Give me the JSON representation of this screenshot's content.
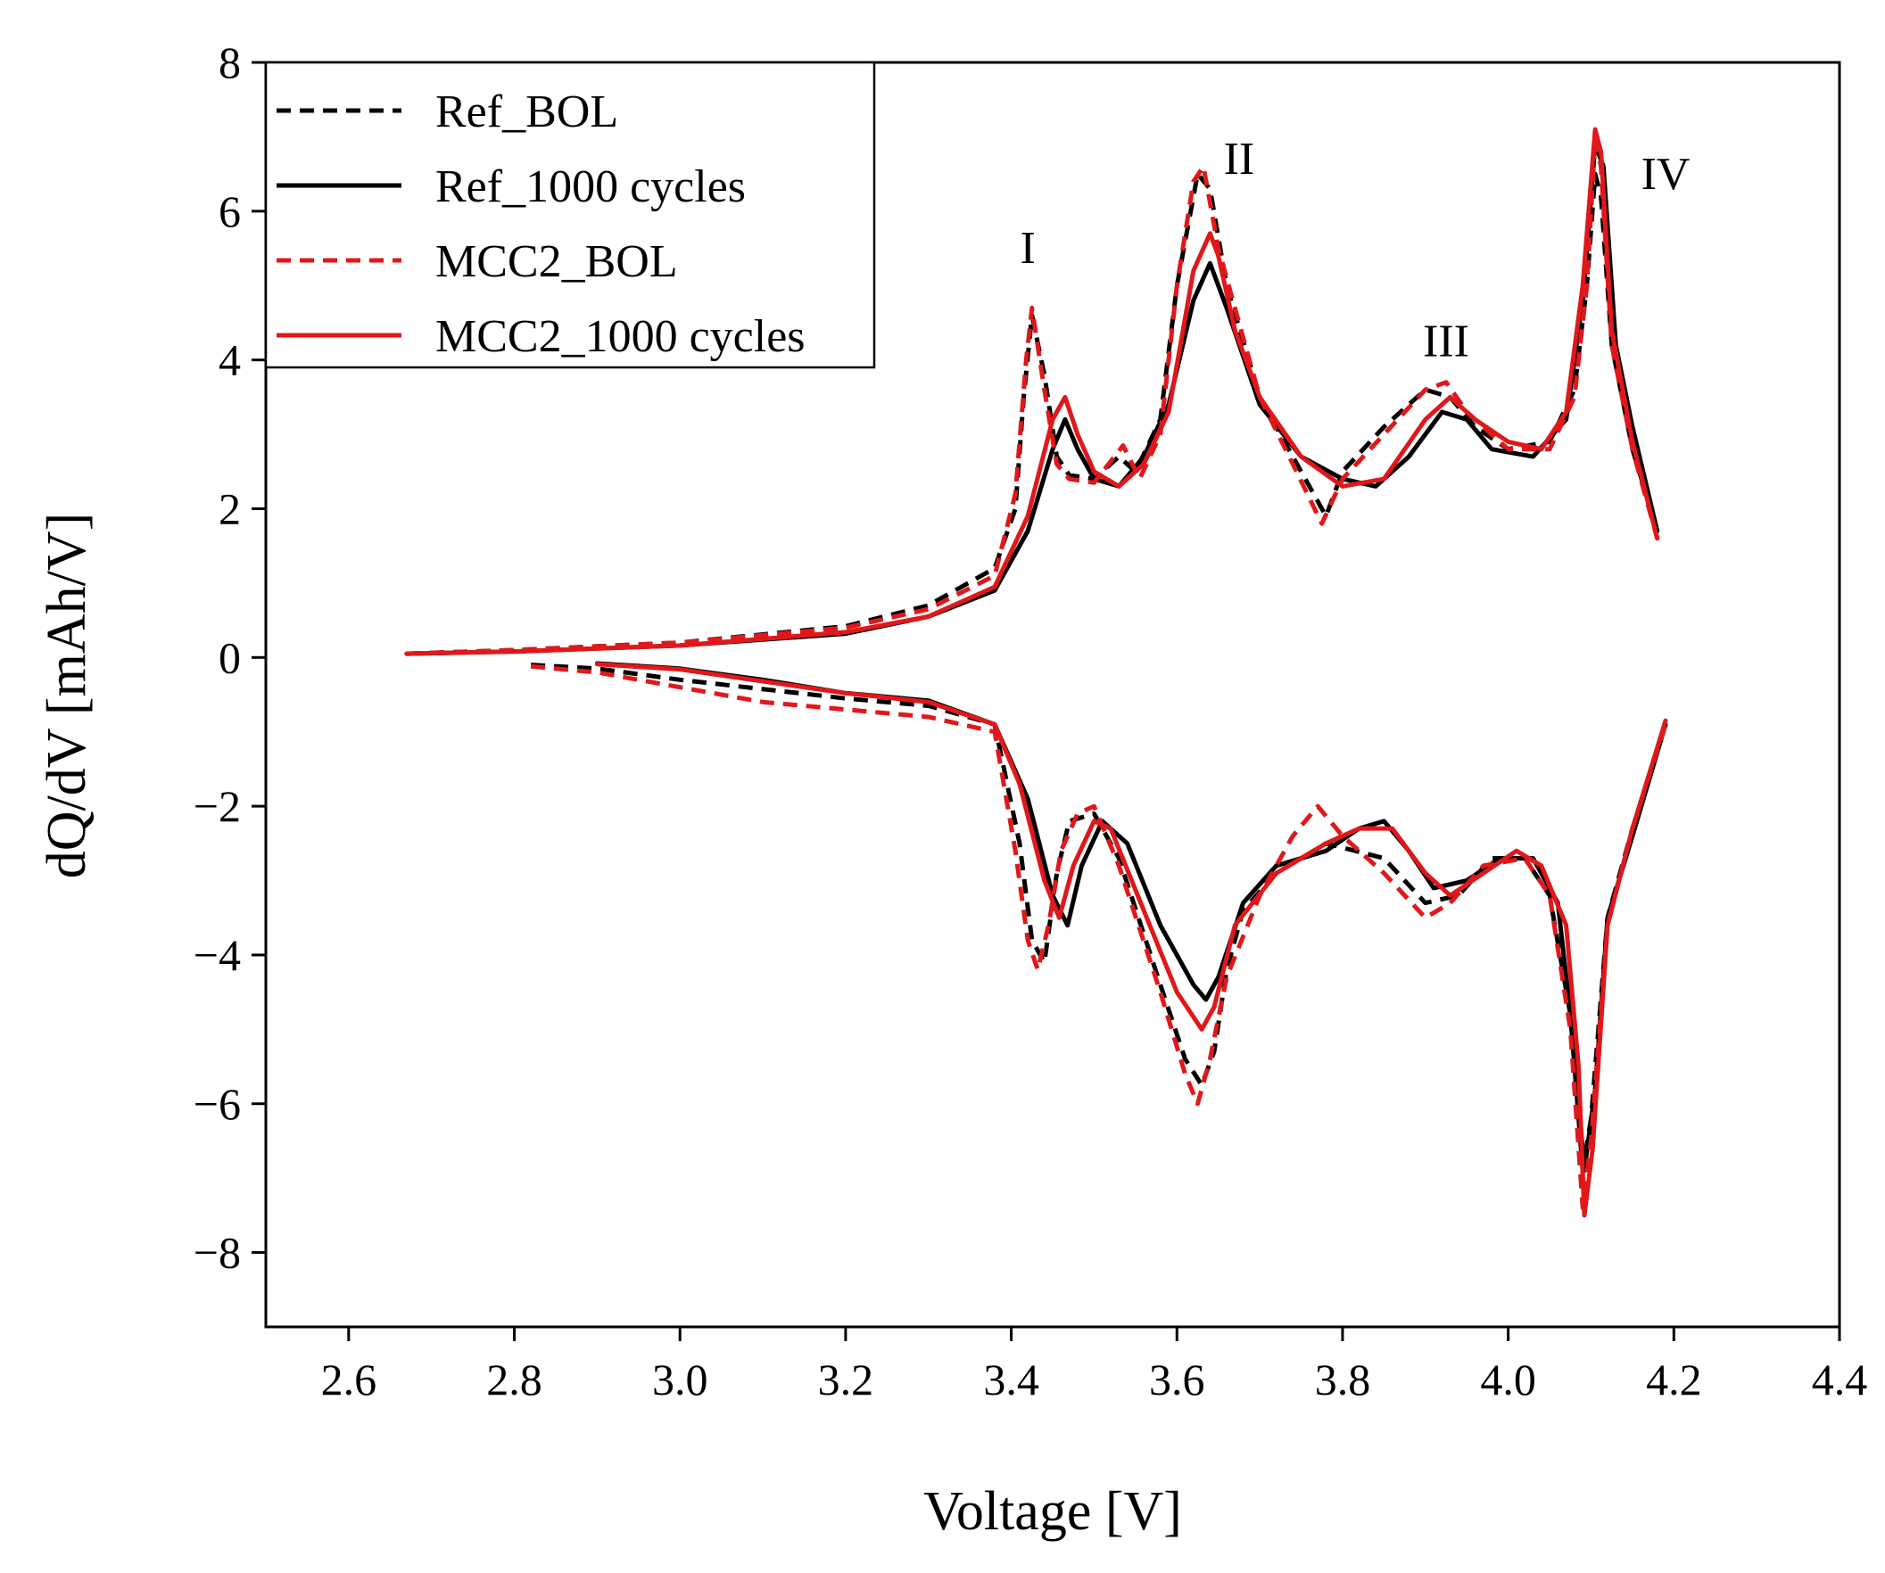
{
  "chart_data": {
    "type": "line",
    "title": "",
    "xlabel": "Voltage [V]",
    "ylabel": "dQ/dV [mAh/V]",
    "xlim": [
      2.5,
      4.4
    ],
    "ylim": [
      -9,
      8
    ],
    "xticks": [
      2.6,
      2.8,
      3.0,
      3.2,
      3.4,
      3.6,
      3.8,
      4.0,
      4.2,
      4.4
    ],
    "xtick_labels": [
      "2.6",
      "2.8",
      "3.0",
      "3.2",
      "3.4",
      "3.6",
      "3.8",
      "4.0",
      "4.2",
      "4.4"
    ],
    "yticks": [
      -8,
      -6,
      -4,
      -2,
      0,
      2,
      4,
      6,
      8
    ],
    "ytick_labels": [
      "−8",
      "−6",
      "−4",
      "−2",
      "0",
      "2",
      "4",
      "6",
      "8"
    ],
    "grid": false,
    "legend_position": "top-left",
    "annotations": [
      {
        "text": "I",
        "x": 3.42,
        "y": 5.3
      },
      {
        "text": "II",
        "x": 3.675,
        "y": 6.5
      },
      {
        "text": "III",
        "x": 3.925,
        "y": 4.05
      },
      {
        "text": "IV",
        "x": 4.19,
        "y": 6.3
      }
    ],
    "series": [
      {
        "name": "Ref_BOL",
        "color": "#000000",
        "dash": "dashed",
        "charge": [
          [
            2.67,
            0.05
          ],
          [
            2.8,
            0.1
          ],
          [
            3.0,
            0.2
          ],
          [
            3.2,
            0.42
          ],
          [
            3.3,
            0.7
          ],
          [
            3.38,
            1.2
          ],
          [
            3.405,
            2.0
          ],
          [
            3.415,
            3.5
          ],
          [
            3.425,
            4.6
          ],
          [
            3.44,
            3.8
          ],
          [
            3.455,
            2.7
          ],
          [
            3.47,
            2.45
          ],
          [
            3.5,
            2.4
          ],
          [
            3.53,
            2.7
          ],
          [
            3.55,
            2.5
          ],
          [
            3.58,
            3.2
          ],
          [
            3.6,
            5.0
          ],
          [
            3.625,
            6.5
          ],
          [
            3.64,
            6.3
          ],
          [
            3.66,
            5.0
          ],
          [
            3.7,
            3.5
          ],
          [
            3.75,
            2.5
          ],
          [
            3.78,
            1.9
          ],
          [
            3.8,
            2.5
          ],
          [
            3.85,
            3.1
          ],
          [
            3.9,
            3.6
          ],
          [
            3.93,
            3.5
          ],
          [
            3.96,
            3.1
          ],
          [
            4.0,
            2.8
          ],
          [
            4.05,
            2.9
          ],
          [
            4.08,
            3.6
          ],
          [
            4.095,
            5.0
          ],
          [
            4.105,
            6.5
          ],
          [
            4.112,
            6.2
          ],
          [
            4.125,
            4.2
          ],
          [
            4.15,
            2.8
          ],
          [
            4.18,
            1.7
          ]
        ],
        "discharge": [
          [
            2.82,
            -0.1
          ],
          [
            2.9,
            -0.15
          ],
          [
            3.0,
            -0.3
          ],
          [
            3.2,
            -0.55
          ],
          [
            3.3,
            -0.65
          ],
          [
            3.38,
            -0.9
          ],
          [
            3.41,
            -2.5
          ],
          [
            3.425,
            -3.8
          ],
          [
            3.44,
            -4.1
          ],
          [
            3.455,
            -2.9
          ],
          [
            3.47,
            -2.2
          ],
          [
            3.5,
            -2.1
          ],
          [
            3.53,
            -2.7
          ],
          [
            3.58,
            -4.4
          ],
          [
            3.61,
            -5.4
          ],
          [
            3.63,
            -5.75
          ],
          [
            3.645,
            -5.3
          ],
          [
            3.66,
            -4.2
          ],
          [
            3.68,
            -3.4
          ],
          [
            3.72,
            -2.9
          ],
          [
            3.78,
            -2.5
          ],
          [
            3.85,
            -2.7
          ],
          [
            3.9,
            -3.3
          ],
          [
            3.94,
            -3.2
          ],
          [
            3.98,
            -2.7
          ],
          [
            4.02,
            -2.7
          ],
          [
            4.05,
            -3.2
          ],
          [
            4.075,
            -4.8
          ],
          [
            4.09,
            -6.9
          ],
          [
            4.1,
            -6.2
          ],
          [
            4.12,
            -3.5
          ],
          [
            4.15,
            -2.3
          ],
          [
            4.19,
            -0.9
          ]
        ]
      },
      {
        "name": "Ref_1000 cycles",
        "color": "#000000",
        "dash": "solid",
        "charge": [
          [
            2.67,
            0.05
          ],
          [
            2.8,
            0.08
          ],
          [
            3.0,
            0.16
          ],
          [
            3.2,
            0.32
          ],
          [
            3.3,
            0.55
          ],
          [
            3.38,
            0.9
          ],
          [
            3.42,
            1.7
          ],
          [
            3.45,
            2.8
          ],
          [
            3.465,
            3.2
          ],
          [
            3.48,
            2.8
          ],
          [
            3.5,
            2.4
          ],
          [
            3.53,
            2.3
          ],
          [
            3.56,
            2.7
          ],
          [
            3.59,
            3.4
          ],
          [
            3.62,
            4.8
          ],
          [
            3.64,
            5.3
          ],
          [
            3.66,
            4.7
          ],
          [
            3.7,
            3.4
          ],
          [
            3.75,
            2.7
          ],
          [
            3.8,
            2.4
          ],
          [
            3.84,
            2.3
          ],
          [
            3.88,
            2.7
          ],
          [
            3.92,
            3.3
          ],
          [
            3.95,
            3.2
          ],
          [
            3.98,
            2.8
          ],
          [
            4.03,
            2.7
          ],
          [
            4.07,
            3.2
          ],
          [
            4.09,
            4.8
          ],
          [
            4.105,
            6.9
          ],
          [
            4.115,
            6.6
          ],
          [
            4.13,
            4.2
          ],
          [
            4.15,
            3.1
          ],
          [
            4.18,
            1.7
          ]
        ],
        "discharge": [
          [
            2.9,
            -0.08
          ],
          [
            3.0,
            -0.15
          ],
          [
            3.1,
            -0.3
          ],
          [
            3.2,
            -0.48
          ],
          [
            3.3,
            -0.58
          ],
          [
            3.38,
            -0.9
          ],
          [
            3.42,
            -1.9
          ],
          [
            3.45,
            -3.2
          ],
          [
            3.468,
            -3.6
          ],
          [
            3.485,
            -2.8
          ],
          [
            3.51,
            -2.2
          ],
          [
            3.54,
            -2.5
          ],
          [
            3.58,
            -3.6
          ],
          [
            3.62,
            -4.4
          ],
          [
            3.635,
            -4.6
          ],
          [
            3.65,
            -4.3
          ],
          [
            3.68,
            -3.3
          ],
          [
            3.72,
            -2.8
          ],
          [
            3.78,
            -2.6
          ],
          [
            3.82,
            -2.3
          ],
          [
            3.85,
            -2.2
          ],
          [
            3.88,
            -2.6
          ],
          [
            3.91,
            -3.1
          ],
          [
            3.95,
            -3.0
          ],
          [
            3.99,
            -2.7
          ],
          [
            4.03,
            -2.7
          ],
          [
            4.06,
            -3.3
          ],
          [
            4.08,
            -5.3
          ],
          [
            4.092,
            -6.9
          ],
          [
            4.105,
            -5.8
          ],
          [
            4.12,
            -3.5
          ],
          [
            4.15,
            -2.4
          ],
          [
            4.19,
            -0.9
          ]
        ]
      },
      {
        "name": "MCC2_BOL",
        "color": "#e0181b",
        "dash": "dashed",
        "charge": [
          [
            2.67,
            0.05
          ],
          [
            2.8,
            0.1
          ],
          [
            3.0,
            0.2
          ],
          [
            3.2,
            0.4
          ],
          [
            3.3,
            0.65
          ],
          [
            3.38,
            1.1
          ],
          [
            3.405,
            2.2
          ],
          [
            3.418,
            4.0
          ],
          [
            3.425,
            4.7
          ],
          [
            3.44,
            3.6
          ],
          [
            3.455,
            2.6
          ],
          [
            3.47,
            2.4
          ],
          [
            3.5,
            2.35
          ],
          [
            3.535,
            2.85
          ],
          [
            3.555,
            2.4
          ],
          [
            3.58,
            3.0
          ],
          [
            3.6,
            5.0
          ],
          [
            3.62,
            6.4
          ],
          [
            3.632,
            6.6
          ],
          [
            3.65,
            5.5
          ],
          [
            3.7,
            3.5
          ],
          [
            3.74,
            2.6
          ],
          [
            3.775,
            1.8
          ],
          [
            3.8,
            2.4
          ],
          [
            3.85,
            3.0
          ],
          [
            3.9,
            3.6
          ],
          [
            3.925,
            3.7
          ],
          [
            3.95,
            3.3
          ],
          [
            4.0,
            2.8
          ],
          [
            4.05,
            2.8
          ],
          [
            4.08,
            3.5
          ],
          [
            4.095,
            5.0
          ],
          [
            4.105,
            7.0
          ],
          [
            4.112,
            6.6
          ],
          [
            4.125,
            4.2
          ],
          [
            4.15,
            2.8
          ],
          [
            4.18,
            1.6
          ]
        ],
        "discharge": [
          [
            2.82,
            -0.12
          ],
          [
            2.9,
            -0.2
          ],
          [
            3.0,
            -0.4
          ],
          [
            3.1,
            -0.6
          ],
          [
            3.2,
            -0.7
          ],
          [
            3.3,
            -0.8
          ],
          [
            3.38,
            -1.0
          ],
          [
            3.405,
            -2.6
          ],
          [
            3.42,
            -3.8
          ],
          [
            3.432,
            -4.2
          ],
          [
            3.445,
            -3.6
          ],
          [
            3.46,
            -2.6
          ],
          [
            3.48,
            -2.1
          ],
          [
            3.5,
            -2.0
          ],
          [
            3.53,
            -2.8
          ],
          [
            3.58,
            -4.5
          ],
          [
            3.61,
            -5.6
          ],
          [
            3.625,
            -6.0
          ],
          [
            3.64,
            -5.4
          ],
          [
            3.66,
            -4.3
          ],
          [
            3.7,
            -3.2
          ],
          [
            3.74,
            -2.4
          ],
          [
            3.77,
            -2.0
          ],
          [
            3.8,
            -2.4
          ],
          [
            3.85,
            -2.9
          ],
          [
            3.9,
            -3.5
          ],
          [
            3.93,
            -3.3
          ],
          [
            3.97,
            -2.8
          ],
          [
            4.02,
            -2.7
          ],
          [
            4.05,
            -3.2
          ],
          [
            4.075,
            -5.0
          ],
          [
            4.09,
            -7.4
          ],
          [
            4.1,
            -6.5
          ],
          [
            4.12,
            -3.6
          ],
          [
            4.15,
            -2.3
          ],
          [
            4.19,
            -0.9
          ]
        ]
      },
      {
        "name": "MCC2_1000 cycles",
        "color": "#e0181b",
        "dash": "solid",
        "charge": [
          [
            2.67,
            0.05
          ],
          [
            2.8,
            0.08
          ],
          [
            3.0,
            0.16
          ],
          [
            3.2,
            0.34
          ],
          [
            3.3,
            0.55
          ],
          [
            3.38,
            0.95
          ],
          [
            3.42,
            1.9
          ],
          [
            3.45,
            3.2
          ],
          [
            3.465,
            3.5
          ],
          [
            3.48,
            3.0
          ],
          [
            3.5,
            2.5
          ],
          [
            3.53,
            2.3
          ],
          [
            3.56,
            2.6
          ],
          [
            3.59,
            3.3
          ],
          [
            3.62,
            5.2
          ],
          [
            3.64,
            5.7
          ],
          [
            3.65,
            5.4
          ],
          [
            3.67,
            4.4
          ],
          [
            3.7,
            3.5
          ],
          [
            3.75,
            2.7
          ],
          [
            3.8,
            2.3
          ],
          [
            3.85,
            2.4
          ],
          [
            3.9,
            3.2
          ],
          [
            3.93,
            3.5
          ],
          [
            3.96,
            3.2
          ],
          [
            4.0,
            2.9
          ],
          [
            4.04,
            2.8
          ],
          [
            4.07,
            3.3
          ],
          [
            4.09,
            5.0
          ],
          [
            4.105,
            7.1
          ],
          [
            4.112,
            6.8
          ],
          [
            4.125,
            4.4
          ],
          [
            4.15,
            2.9
          ],
          [
            4.18,
            1.6
          ]
        ],
        "discharge": [
          [
            2.9,
            -0.09
          ],
          [
            3.0,
            -0.16
          ],
          [
            3.1,
            -0.32
          ],
          [
            3.2,
            -0.48
          ],
          [
            3.3,
            -0.6
          ],
          [
            3.38,
            -0.9
          ],
          [
            3.41,
            -1.7
          ],
          [
            3.44,
            -3.0
          ],
          [
            3.458,
            -3.5
          ],
          [
            3.475,
            -2.8
          ],
          [
            3.5,
            -2.2
          ],
          [
            3.52,
            -2.3
          ],
          [
            3.56,
            -3.4
          ],
          [
            3.6,
            -4.5
          ],
          [
            3.63,
            -5.0
          ],
          [
            3.645,
            -4.7
          ],
          [
            3.67,
            -3.6
          ],
          [
            3.72,
            -2.9
          ],
          [
            3.78,
            -2.5
          ],
          [
            3.82,
            -2.3
          ],
          [
            3.86,
            -2.3
          ],
          [
            3.9,
            -2.9
          ],
          [
            3.93,
            -3.2
          ],
          [
            3.97,
            -2.9
          ],
          [
            4.01,
            -2.6
          ],
          [
            4.04,
            -2.8
          ],
          [
            4.07,
            -3.6
          ],
          [
            4.085,
            -5.5
          ],
          [
            4.092,
            -7.5
          ],
          [
            4.102,
            -6.6
          ],
          [
            4.12,
            -3.6
          ],
          [
            4.15,
            -2.3
          ],
          [
            4.19,
            -0.85
          ]
        ]
      }
    ]
  }
}
